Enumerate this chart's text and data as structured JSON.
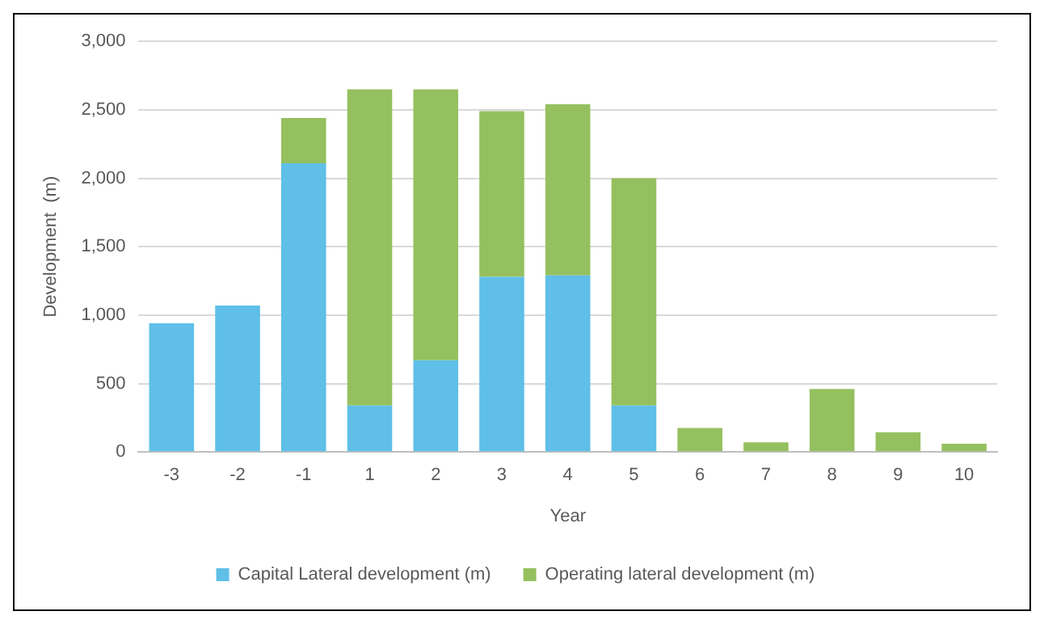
{
  "chart_data": {
    "type": "bar",
    "xlabel": "Year",
    "ylabel": "Development  (m)",
    "categories": [
      "-3",
      "-2",
      "-1",
      "1",
      "2",
      "3",
      "4",
      "5",
      "6",
      "7",
      "8",
      "9",
      "10"
    ],
    "series": [
      {
        "name": "Capital Lateral development (m)",
        "color": "#5fbfe8",
        "values": [
          940,
          1070,
          2110,
          340,
          670,
          1280,
          1290,
          340,
          0,
          0,
          0,
          0,
          0
        ]
      },
      {
        "name": "Operating lateral development (m)",
        "color": "#95c05f",
        "values": [
          0,
          0,
          330,
          2310,
          1980,
          1210,
          1250,
          1660,
          175,
          70,
          460,
          145,
          60
        ]
      }
    ],
    "stacked": true,
    "ylim": [
      0,
      3000
    ],
    "yticks": [
      {
        "value": 0,
        "label": "0"
      },
      {
        "value": 500,
        "label": "500"
      },
      {
        "value": 1000,
        "label": "1,000"
      },
      {
        "value": 1500,
        "label": "1,500"
      },
      {
        "value": 2000,
        "label": "2,000"
      },
      {
        "value": 2500,
        "label": "2,500"
      },
      {
        "value": 3000,
        "label": "3,000"
      }
    ],
    "grid": "y",
    "legend": "bottom"
  }
}
